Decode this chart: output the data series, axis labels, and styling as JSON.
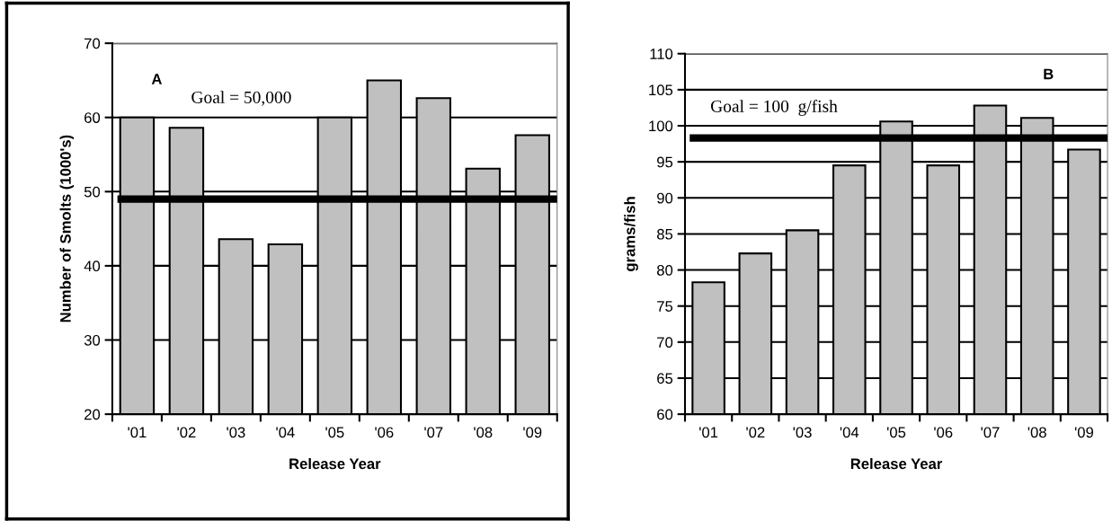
{
  "chart_data": [
    {
      "type": "bar",
      "ylabel": "Number of Smolts (1000's)",
      "xlabel": "Release Year",
      "categories": [
        "'01",
        "'02",
        "'03",
        "'04",
        "'05",
        "'06",
        "'07",
        "'08",
        "'09"
      ],
      "series": [
        {
          "color": "#c0c0c0",
          "values": [
            60,
            58.6,
            43.6,
            42.9,
            60,
            65.0,
            62.6,
            53.1,
            57.6
          ]
        }
      ],
      "ylim": [
        20,
        70
      ],
      "yticks": [
        20,
        30,
        40,
        50,
        60,
        70
      ],
      "grid": "y",
      "legend": false,
      "ref_lines": [
        {
          "axis": "y",
          "value": 49.0,
          "color": "#000000"
        }
      ],
      "annotations": [
        "A",
        "Goal = 50,000"
      ]
    },
    {
      "type": "bar",
      "ylabel": "grams/fish",
      "xlabel": "Release Year",
      "categories": [
        "'01",
        "'02",
        "'03",
        "'04",
        "'05",
        "'06",
        "'07",
        "'08",
        "'09"
      ],
      "series": [
        {
          "color": "#c0c0c0",
          "values": [
            78.3,
            82.3,
            85.5,
            94.5,
            100.6,
            94.5,
            102.8,
            101.1,
            96.7
          ]
        }
      ],
      "ylim": [
        60,
        110
      ],
      "yticks": [
        60,
        65,
        70,
        75,
        80,
        85,
        90,
        95,
        100,
        105,
        110
      ],
      "grid": "y",
      "legend": false,
      "ref_lines": [
        {
          "axis": "y",
          "value": 98.3,
          "color": "#000000"
        }
      ],
      "annotations": [
        "B",
        "Goal = 100  g/fish"
      ]
    }
  ]
}
